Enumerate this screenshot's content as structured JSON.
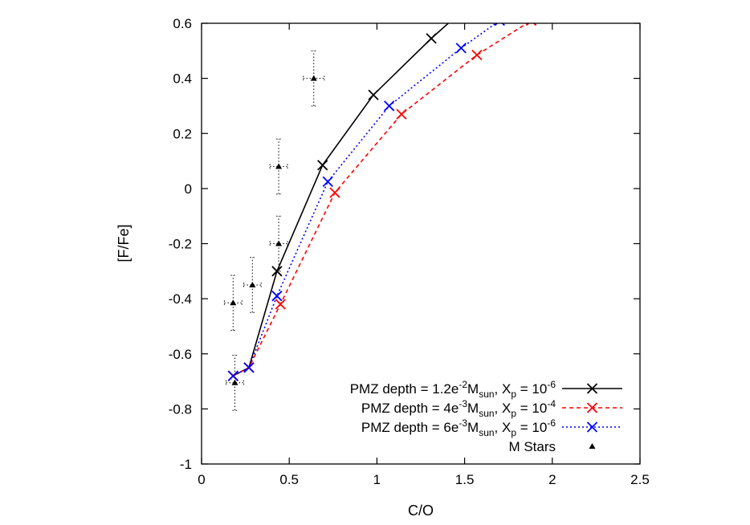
{
  "chart_data": {
    "type": "line",
    "title": "",
    "xlabel": "C/O",
    "ylabel": "[F/Fe]",
    "xlim": [
      0,
      2.5
    ],
    "ylim": [
      -1,
      0.6
    ],
    "x_ticks": [
      0,
      0.5,
      1,
      1.5,
      2,
      2.5
    ],
    "y_ticks": [
      -1,
      -0.8,
      -0.6,
      -0.4,
      -0.2,
      0,
      0.2,
      0.4,
      0.6
    ],
    "x_tick_labels": [
      "0",
      "0.5",
      "1",
      "1.5",
      "2",
      "2.5"
    ],
    "y_tick_labels": [
      "-1",
      "-0.8",
      "-0.6",
      "-0.4",
      "-0.2",
      "0",
      "0.2",
      "0.4",
      "0.6"
    ],
    "grid": false,
    "legend_position": "bottom-right",
    "series": [
      {
        "legend": {
          "pre": "PMZ depth = 1.2e",
          "exp": "-2",
          "mid": "M",
          "sub": "sun",
          "post": ", X",
          "sub2": "p",
          "eq": " = 10",
          "exp2": "-6"
        },
        "color": "#000000",
        "dash": "",
        "marker": "x",
        "points": [
          [
            0.18,
            -0.68
          ],
          [
            0.27,
            -0.65
          ],
          [
            0.43,
            -0.3
          ],
          [
            0.69,
            0.085
          ],
          [
            0.98,
            0.34
          ],
          [
            1.31,
            0.545
          ],
          [
            1.46,
            0.63
          ]
        ]
      },
      {
        "legend": {
          "pre": "PMZ depth = 4e",
          "exp": "-3",
          "mid": "M",
          "sub": "sun",
          "post": ", X",
          "sub2": "p",
          "eq": " = 10",
          "exp2": "-4"
        },
        "color": "#ff0000",
        "dash": "5,4",
        "marker": "x",
        "points": [
          [
            0.18,
            -0.68
          ],
          [
            0.27,
            -0.65
          ],
          [
            0.45,
            -0.42
          ],
          [
            0.76,
            -0.015
          ],
          [
            1.14,
            0.27
          ],
          [
            1.57,
            0.485
          ],
          [
            1.88,
            0.61
          ]
        ]
      },
      {
        "legend": {
          "pre": "PMZ depth = 6e",
          "exp": "-3",
          "mid": "M",
          "sub": "sun",
          "post": ", X",
          "sub2": "p",
          "eq": " = 10",
          "exp2": "-6"
        },
        "color": "#0000ff",
        "dash": "2,3",
        "marker": "x",
        "points": [
          [
            0.18,
            -0.68
          ],
          [
            0.27,
            -0.65
          ],
          [
            0.43,
            -0.39
          ],
          [
            0.72,
            0.025
          ],
          [
            1.07,
            0.3
          ],
          [
            1.48,
            0.51
          ],
          [
            1.7,
            0.61
          ]
        ]
      },
      {
        "legend": {
          "pre": "M Stars"
        },
        "color": "#000000",
        "dash": "",
        "marker": "triangle",
        "points": [
          {
            "x": 0.18,
            "y": -0.415,
            "xerr": 0.05,
            "yerr": 0.1
          },
          {
            "x": 0.19,
            "y": -0.705,
            "xerr": 0.05,
            "yerr": 0.1
          },
          {
            "x": 0.29,
            "y": -0.35,
            "xerr": 0.05,
            "yerr": 0.1
          },
          {
            "x": 0.44,
            "y": -0.2,
            "xerr": 0.05,
            "yerr": 0.1
          },
          {
            "x": 0.44,
            "y": 0.08,
            "xerr": 0.05,
            "yerr": 0.1
          },
          {
            "x": 0.64,
            "y": 0.4,
            "xerr": 0.06,
            "yerr": 0.1
          }
        ]
      }
    ]
  }
}
